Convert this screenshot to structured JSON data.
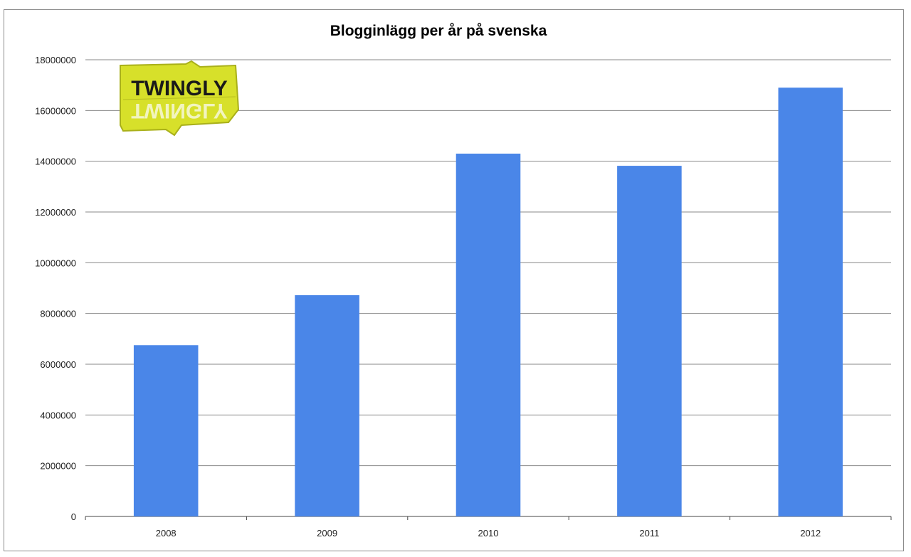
{
  "chart_data": {
    "type": "bar",
    "title": "Blogginlägg per år på svenska",
    "xlabel": "",
    "ylabel": "",
    "categories": [
      "2008",
      "2009",
      "2010",
      "2011",
      "2012"
    ],
    "values": [
      6750000,
      8720000,
      14300000,
      13820000,
      16900000
    ],
    "ylim": [
      0,
      18000000
    ],
    "yticks": [
      0,
      2000000,
      4000000,
      6000000,
      8000000,
      10000000,
      12000000,
      14000000,
      16000000,
      18000000
    ],
    "ytick_labels": [
      "0",
      "2000000",
      "4000000",
      "6000000",
      "8000000",
      "10000000",
      "12000000",
      "14000000",
      "16000000",
      "18000000"
    ],
    "grid": true,
    "bar_color": "#4a86e8"
  },
  "logo": {
    "text": "TWINGLY",
    "color": "#d7e02a"
  }
}
